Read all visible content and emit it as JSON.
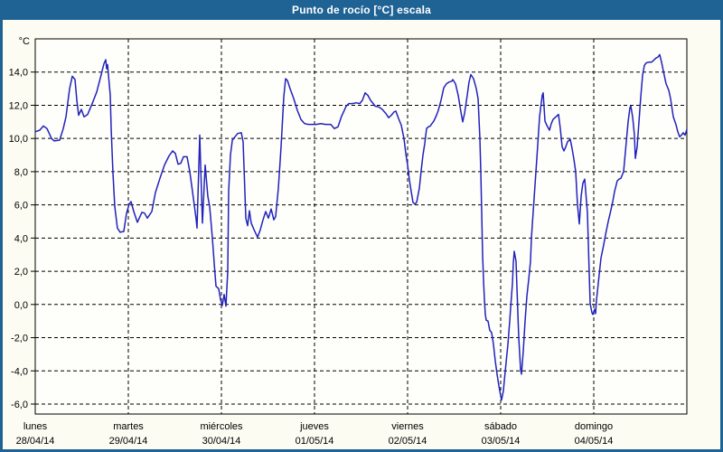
{
  "window": {
    "title": "Punto de rocío [°C] escala"
  },
  "colors": {
    "frame": "#1F6394",
    "title_text": "#FFFFFF",
    "background": "#FCFCF2",
    "plot_background": "#FEFEFA",
    "grid": "#000000",
    "line": "#2222BC",
    "text": "#000000"
  },
  "chart_data": {
    "type": "line",
    "title": "Punto de rocío [°C] escala",
    "xlabel": "",
    "ylabel": "°C",
    "legend": "none",
    "grid": "dashed",
    "ylim": [
      -6.6,
      16.0
    ],
    "xlim_days": [
      0,
      7
    ],
    "yticks": [
      {
        "value": 14,
        "label": "14,0"
      },
      {
        "value": 12,
        "label": "12,0"
      },
      {
        "value": 10,
        "label": "10,0"
      },
      {
        "value": 8,
        "label": "8,0"
      },
      {
        "value": 6,
        "label": "6,0"
      },
      {
        "value": 4,
        "label": "4,0"
      },
      {
        "value": 2,
        "label": "2,0"
      },
      {
        "value": 0,
        "label": "0,0"
      },
      {
        "value": -2,
        "label": "-2,0"
      },
      {
        "value": -4,
        "label": "-4,0"
      },
      {
        "value": -6,
        "label": "-6,0"
      }
    ],
    "xticks": [
      {
        "day": 0,
        "name": "lunes",
        "date": "28/04/14"
      },
      {
        "day": 1,
        "name": "martes",
        "date": "29/04/14"
      },
      {
        "day": 2,
        "name": "miércoles",
        "date": "30/04/14"
      },
      {
        "day": 3,
        "name": "jueves",
        "date": "01/05/14"
      },
      {
        "day": 4,
        "name": "viernes",
        "date": "02/05/14"
      },
      {
        "day": 5,
        "name": "sábado",
        "date": "03/05/14"
      },
      {
        "day": 6,
        "name": "domingo",
        "date": "04/05/14"
      }
    ],
    "series": [
      {
        "name": "Punto de rocío [°C]",
        "color": "#2222BC",
        "points": [
          [
            0.0,
            10.4
          ],
          [
            0.049,
            10.5
          ],
          [
            0.087,
            10.75
          ],
          [
            0.126,
            10.6
          ],
          [
            0.175,
            10.0
          ],
          [
            0.204,
            9.85
          ],
          [
            0.262,
            9.9
          ],
          [
            0.301,
            10.6
          ],
          [
            0.33,
            11.3
          ],
          [
            0.369,
            13.0
          ],
          [
            0.398,
            13.75
          ],
          [
            0.427,
            13.55
          ],
          [
            0.447,
            12.3
          ],
          [
            0.466,
            11.4
          ],
          [
            0.495,
            11.75
          ],
          [
            0.524,
            11.3
          ],
          [
            0.563,
            11.45
          ],
          [
            0.612,
            12.1
          ],
          [
            0.66,
            12.8
          ],
          [
            0.709,
            13.85
          ],
          [
            0.738,
            14.5
          ],
          [
            0.757,
            14.75
          ],
          [
            0.767,
            14.2
          ],
          [
            0.777,
            14.45
          ],
          [
            0.806,
            12.6
          ],
          [
            0.816,
            10.6
          ],
          [
            0.835,
            7.9
          ],
          [
            0.854,
            5.9
          ],
          [
            0.883,
            4.6
          ],
          [
            0.913,
            4.35
          ],
          [
            0.951,
            4.4
          ],
          [
            0.981,
            5.5
          ],
          [
            1.01,
            6.05
          ],
          [
            1.029,
            6.2
          ],
          [
            1.058,
            5.6
          ],
          [
            1.097,
            4.95
          ],
          [
            1.146,
            5.55
          ],
          [
            1.175,
            5.5
          ],
          [
            1.204,
            5.2
          ],
          [
            1.252,
            5.6
          ],
          [
            1.291,
            6.75
          ],
          [
            1.34,
            7.6
          ],
          [
            1.388,
            8.4
          ],
          [
            1.437,
            8.95
          ],
          [
            1.476,
            9.25
          ],
          [
            1.505,
            9.1
          ],
          [
            1.534,
            8.45
          ],
          [
            1.563,
            8.5
          ],
          [
            1.592,
            8.9
          ],
          [
            1.631,
            8.9
          ],
          [
            1.66,
            8.0
          ],
          [
            1.689,
            6.8
          ],
          [
            1.728,
            5.15
          ],
          [
            1.738,
            4.6
          ],
          [
            1.767,
            10.2
          ],
          [
            1.796,
            4.9
          ],
          [
            1.825,
            8.4
          ],
          [
            1.854,
            6.5
          ],
          [
            1.874,
            5.9
          ],
          [
            1.903,
            4.0
          ],
          [
            1.922,
            2.5
          ],
          [
            1.942,
            1.1
          ],
          [
            1.971,
            0.95
          ],
          [
            1.99,
            0.3
          ],
          [
            2.01,
            -0.05
          ],
          [
            2.029,
            0.6
          ],
          [
            2.049,
            -0.1
          ],
          [
            2.068,
            2.0
          ],
          [
            2.078,
            6.8
          ],
          [
            2.097,
            9.0
          ],
          [
            2.117,
            9.9
          ],
          [
            2.146,
            10.1
          ],
          [
            2.175,
            10.3
          ],
          [
            2.214,
            10.35
          ],
          [
            2.233,
            9.8
          ],
          [
            2.262,
            5.2
          ],
          [
            2.282,
            4.75
          ],
          [
            2.301,
            5.65
          ],
          [
            2.32,
            4.9
          ],
          [
            2.35,
            4.5
          ],
          [
            2.388,
            4.05
          ],
          [
            2.417,
            4.5
          ],
          [
            2.447,
            5.1
          ],
          [
            2.476,
            5.6
          ],
          [
            2.505,
            5.2
          ],
          [
            2.534,
            5.75
          ],
          [
            2.563,
            5.1
          ],
          [
            2.583,
            5.3
          ],
          [
            2.612,
            7.0
          ],
          [
            2.641,
            9.5
          ],
          [
            2.67,
            12.5
          ],
          [
            2.689,
            13.6
          ],
          [
            2.709,
            13.5
          ],
          [
            2.738,
            13.0
          ],
          [
            2.777,
            12.4
          ],
          [
            2.816,
            11.7
          ],
          [
            2.854,
            11.15
          ],
          [
            2.893,
            10.9
          ],
          [
            2.932,
            10.85
          ],
          [
            3.019,
            10.85
          ],
          [
            3.068,
            10.9
          ],
          [
            3.117,
            10.85
          ],
          [
            3.175,
            10.85
          ],
          [
            3.214,
            10.6
          ],
          [
            3.252,
            10.7
          ],
          [
            3.291,
            11.35
          ],
          [
            3.32,
            11.7
          ],
          [
            3.34,
            11.95
          ],
          [
            3.369,
            12.1
          ],
          [
            3.408,
            12.1
          ],
          [
            3.447,
            12.15
          ],
          [
            3.485,
            12.1
          ],
          [
            3.515,
            12.3
          ],
          [
            3.544,
            12.75
          ],
          [
            3.573,
            12.6
          ],
          [
            3.602,
            12.3
          ],
          [
            3.631,
            12.1
          ],
          [
            3.65,
            11.95
          ],
          [
            3.689,
            11.9
          ],
          [
            3.728,
            11.75
          ],
          [
            3.767,
            11.5
          ],
          [
            3.796,
            11.25
          ],
          [
            3.825,
            11.4
          ],
          [
            3.854,
            11.6
          ],
          [
            3.874,
            11.65
          ],
          [
            3.903,
            11.2
          ],
          [
            3.932,
            10.8
          ],
          [
            3.961,
            10.0
          ],
          [
            3.981,
            9.1
          ],
          [
            4.0,
            8.4
          ],
          [
            4.019,
            7.5
          ],
          [
            4.039,
            6.8
          ],
          [
            4.058,
            6.15
          ],
          [
            4.078,
            6.05
          ],
          [
            4.097,
            6.15
          ],
          [
            4.126,
            7.0
          ],
          [
            4.146,
            8.05
          ],
          [
            4.165,
            9.0
          ],
          [
            4.184,
            9.7
          ],
          [
            4.204,
            10.6
          ],
          [
            4.223,
            10.7
          ],
          [
            4.243,
            10.75
          ],
          [
            4.282,
            11.05
          ],
          [
            4.311,
            11.4
          ],
          [
            4.33,
            11.7
          ],
          [
            4.359,
            12.3
          ],
          [
            4.388,
            13.05
          ],
          [
            4.417,
            13.3
          ],
          [
            4.447,
            13.4
          ],
          [
            4.476,
            13.45
          ],
          [
            4.485,
            13.55
          ],
          [
            4.515,
            13.3
          ],
          [
            4.544,
            12.6
          ],
          [
            4.573,
            11.6
          ],
          [
            4.592,
            11.0
          ],
          [
            4.612,
            11.5
          ],
          [
            4.641,
            12.6
          ],
          [
            4.66,
            13.4
          ],
          [
            4.68,
            13.85
          ],
          [
            4.709,
            13.6
          ],
          [
            4.738,
            13.0
          ],
          [
            4.757,
            12.4
          ],
          [
            4.777,
            10.0
          ],
          [
            4.786,
            8.0
          ],
          [
            4.796,
            5.5
          ],
          [
            4.806,
            3.0
          ],
          [
            4.816,
            1.5
          ],
          [
            4.825,
            0.3
          ],
          [
            4.835,
            -0.6
          ],
          [
            4.845,
            -0.95
          ],
          [
            4.864,
            -1.0
          ],
          [
            4.883,
            -1.55
          ],
          [
            4.903,
            -1.7
          ],
          [
            4.922,
            -2.4
          ],
          [
            4.942,
            -3.4
          ],
          [
            4.961,
            -4.2
          ],
          [
            4.981,
            -4.9
          ],
          [
            5.0,
            -5.5
          ],
          [
            5.01,
            -5.75
          ],
          [
            5.029,
            -5.2
          ],
          [
            5.039,
            -4.6
          ],
          [
            5.058,
            -3.5
          ],
          [
            5.078,
            -2.4
          ],
          [
            5.097,
            -1.0
          ],
          [
            5.107,
            -0.2
          ],
          [
            5.126,
            1.25
          ],
          [
            5.136,
            2.5
          ],
          [
            5.146,
            3.2
          ],
          [
            5.165,
            2.6
          ],
          [
            5.175,
            1.0
          ],
          [
            5.184,
            -0.5
          ],
          [
            5.194,
            -2.0
          ],
          [
            5.214,
            -3.9
          ],
          [
            5.223,
            -4.2
          ],
          [
            5.243,
            -2.8
          ],
          [
            5.262,
            -1.0
          ],
          [
            5.282,
            0.5
          ],
          [
            5.301,
            1.5
          ],
          [
            5.32,
            2.6
          ],
          [
            5.33,
            4.0
          ],
          [
            5.35,
            5.6
          ],
          [
            5.379,
            8.0
          ],
          [
            5.398,
            9.6
          ],
          [
            5.417,
            11.3
          ],
          [
            5.447,
            12.6
          ],
          [
            5.456,
            12.75
          ],
          [
            5.476,
            11.05
          ],
          [
            5.495,
            10.8
          ],
          [
            5.524,
            10.5
          ],
          [
            5.544,
            10.9
          ],
          [
            5.563,
            11.15
          ],
          [
            5.592,
            11.3
          ],
          [
            5.621,
            11.45
          ],
          [
            5.641,
            10.6
          ],
          [
            5.66,
            9.5
          ],
          [
            5.68,
            9.25
          ],
          [
            5.699,
            9.5
          ],
          [
            5.718,
            9.8
          ],
          [
            5.748,
            9.95
          ],
          [
            5.767,
            9.4
          ],
          [
            5.786,
            8.75
          ],
          [
            5.806,
            8.0
          ],
          [
            5.825,
            6.0
          ],
          [
            5.845,
            4.85
          ],
          [
            5.864,
            6.5
          ],
          [
            5.883,
            7.3
          ],
          [
            5.903,
            7.55
          ],
          [
            5.932,
            5.5
          ],
          [
            5.951,
            1.85
          ],
          [
            5.961,
            0.05
          ],
          [
            5.981,
            -0.5
          ],
          [
            5.99,
            -0.6
          ],
          [
            6.01,
            -0.3
          ],
          [
            6.019,
            -0.55
          ],
          [
            6.029,
            0.25
          ],
          [
            6.058,
            1.8
          ],
          [
            6.078,
            2.8
          ],
          [
            6.107,
            3.6
          ],
          [
            6.126,
            4.2
          ],
          [
            6.155,
            5.0
          ],
          [
            6.175,
            5.45
          ],
          [
            6.204,
            6.2
          ],
          [
            6.223,
            6.8
          ],
          [
            6.252,
            7.45
          ],
          [
            6.272,
            7.55
          ],
          [
            6.291,
            7.6
          ],
          [
            6.32,
            8.0
          ],
          [
            6.35,
            9.8
          ],
          [
            6.369,
            11.0
          ],
          [
            6.388,
            11.85
          ],
          [
            6.398,
            11.95
          ],
          [
            6.417,
            11.3
          ],
          [
            6.437,
            10.2
          ],
          [
            6.447,
            8.8
          ],
          [
            6.466,
            9.5
          ],
          [
            6.485,
            11.0
          ],
          [
            6.505,
            12.5
          ],
          [
            6.524,
            13.8
          ],
          [
            6.544,
            14.4
          ],
          [
            6.563,
            14.55
          ],
          [
            6.592,
            14.6
          ],
          [
            6.621,
            14.6
          ],
          [
            6.641,
            14.7
          ],
          [
            6.67,
            14.85
          ],
          [
            6.689,
            14.9
          ],
          [
            6.709,
            15.05
          ],
          [
            6.728,
            14.6
          ],
          [
            6.757,
            13.8
          ],
          [
            6.777,
            13.3
          ],
          [
            6.806,
            12.9
          ],
          [
            6.825,
            12.4
          ],
          [
            6.854,
            11.3
          ],
          [
            6.883,
            10.85
          ],
          [
            6.903,
            10.4
          ],
          [
            6.922,
            10.1
          ],
          [
            6.942,
            10.2
          ],
          [
            6.961,
            10.35
          ],
          [
            6.981,
            10.2
          ],
          [
            7.0,
            10.55
          ]
        ]
      }
    ]
  }
}
